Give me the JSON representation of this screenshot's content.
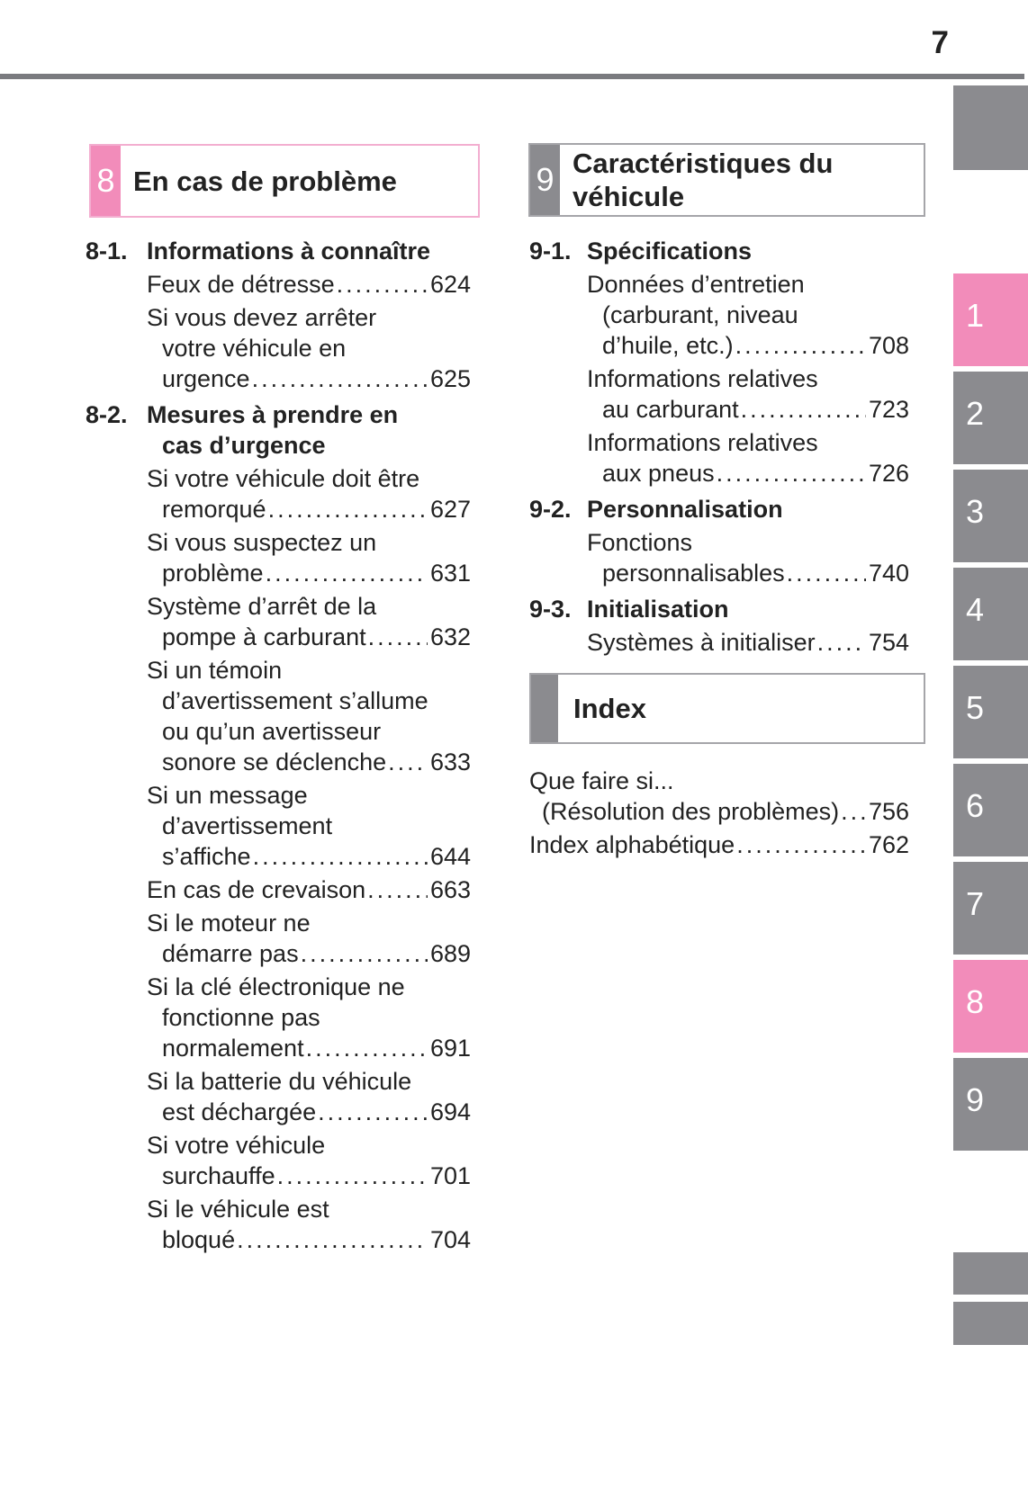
{
  "page_number": "7",
  "chapter_left": {
    "tab": "8",
    "title": "En cas de problème",
    "sections": [
      {
        "num": "8-1.",
        "title_lines": [
          "Informations à connaître"
        ],
        "entries": [
          {
            "lines": [
              "Feux de détresse"
            ],
            "page": "624"
          },
          {
            "lines": [
              "Si vous devez arrêter",
              "votre véhicule en",
              "urgence"
            ],
            "page": "625"
          }
        ]
      },
      {
        "num": "8-2.",
        "title_lines": [
          "Mesures à prendre en",
          "cas d’urgence"
        ],
        "entries": [
          {
            "lines": [
              "Si votre véhicule doit être",
              "remorqué"
            ],
            "page": "627"
          },
          {
            "lines": [
              "Si vous suspectez un",
              "problème"
            ],
            "page": "631"
          },
          {
            "lines": [
              "Système d’arrêt de la",
              "pompe à carburant"
            ],
            "page": "632"
          },
          {
            "lines": [
              "Si un témoin",
              "d’avertissement s’allume",
              "ou qu’un avertisseur",
              "sonore se déclenche"
            ],
            "page": "633"
          },
          {
            "lines": [
              "Si un message",
              "d’avertissement",
              "s’affiche"
            ],
            "page": "644"
          },
          {
            "lines": [
              "En cas de crevaison"
            ],
            "page": "663"
          },
          {
            "lines": [
              "Si le moteur ne",
              "démarre pas"
            ],
            "page": "689"
          },
          {
            "lines": [
              "Si la clé électronique ne",
              "fonctionne pas",
              "normalement"
            ],
            "page": "691"
          },
          {
            "lines": [
              "Si la batterie du véhicule",
              "est déchargée"
            ],
            "page": "694"
          },
          {
            "lines": [
              "Si votre véhicule",
              "surchauffe"
            ],
            "page": "701"
          },
          {
            "lines": [
              "Si le véhicule est",
              "bloqué"
            ],
            "page": "704"
          }
        ]
      }
    ]
  },
  "chapter_right": {
    "tab": "9",
    "title_lines": [
      "Caractéristiques du",
      "véhicule"
    ],
    "sections": [
      {
        "num": "9-1.",
        "title_lines": [
          "Spécifications"
        ],
        "entries": [
          {
            "lines": [
              "Données d’entretien",
              "(carburant, niveau",
              "d’huile, etc.)"
            ],
            "page": "708"
          },
          {
            "lines": [
              "Informations relatives",
              "au carburant"
            ],
            "page": "723"
          },
          {
            "lines": [
              "Informations relatives",
              "aux pneus"
            ],
            "page": "726"
          }
        ]
      },
      {
        "num": "9-2.",
        "title_lines": [
          "Personnalisation"
        ],
        "entries": [
          {
            "lines": [
              "Fonctions",
              "personnalisables"
            ],
            "page": "740"
          }
        ]
      },
      {
        "num": "9-3.",
        "title_lines": [
          "Initialisation"
        ],
        "entries": [
          {
            "lines": [
              "Systèmes à initialiser"
            ],
            "page": "754"
          }
        ]
      }
    ]
  },
  "index_box": {
    "title": "Index"
  },
  "index_entries": [
    {
      "lines": [
        "Que faire si...",
        "(Résolution des problèmes)"
      ],
      "page": "756"
    },
    {
      "lines": [
        "Index alphabétique"
      ],
      "page": "762"
    }
  ],
  "side_rail": {
    "tabs": [
      {
        "label": "1",
        "highlight": true
      },
      {
        "label": "2",
        "highlight": false
      },
      {
        "label": "3",
        "highlight": false
      },
      {
        "label": "4",
        "highlight": false
      },
      {
        "label": "5",
        "highlight": false
      },
      {
        "label": "6",
        "highlight": false
      },
      {
        "label": "7",
        "highlight": false
      },
      {
        "label": "8",
        "highlight": true
      },
      {
        "label": "9",
        "highlight": false
      }
    ]
  },
  "colors": {
    "pink": "#f28cba",
    "pink_border": "#f3aed0",
    "gray": "#8b8b8f",
    "gray_border": "#a5a5a9",
    "rule": "#7a7b7f",
    "text": "#222222"
  }
}
